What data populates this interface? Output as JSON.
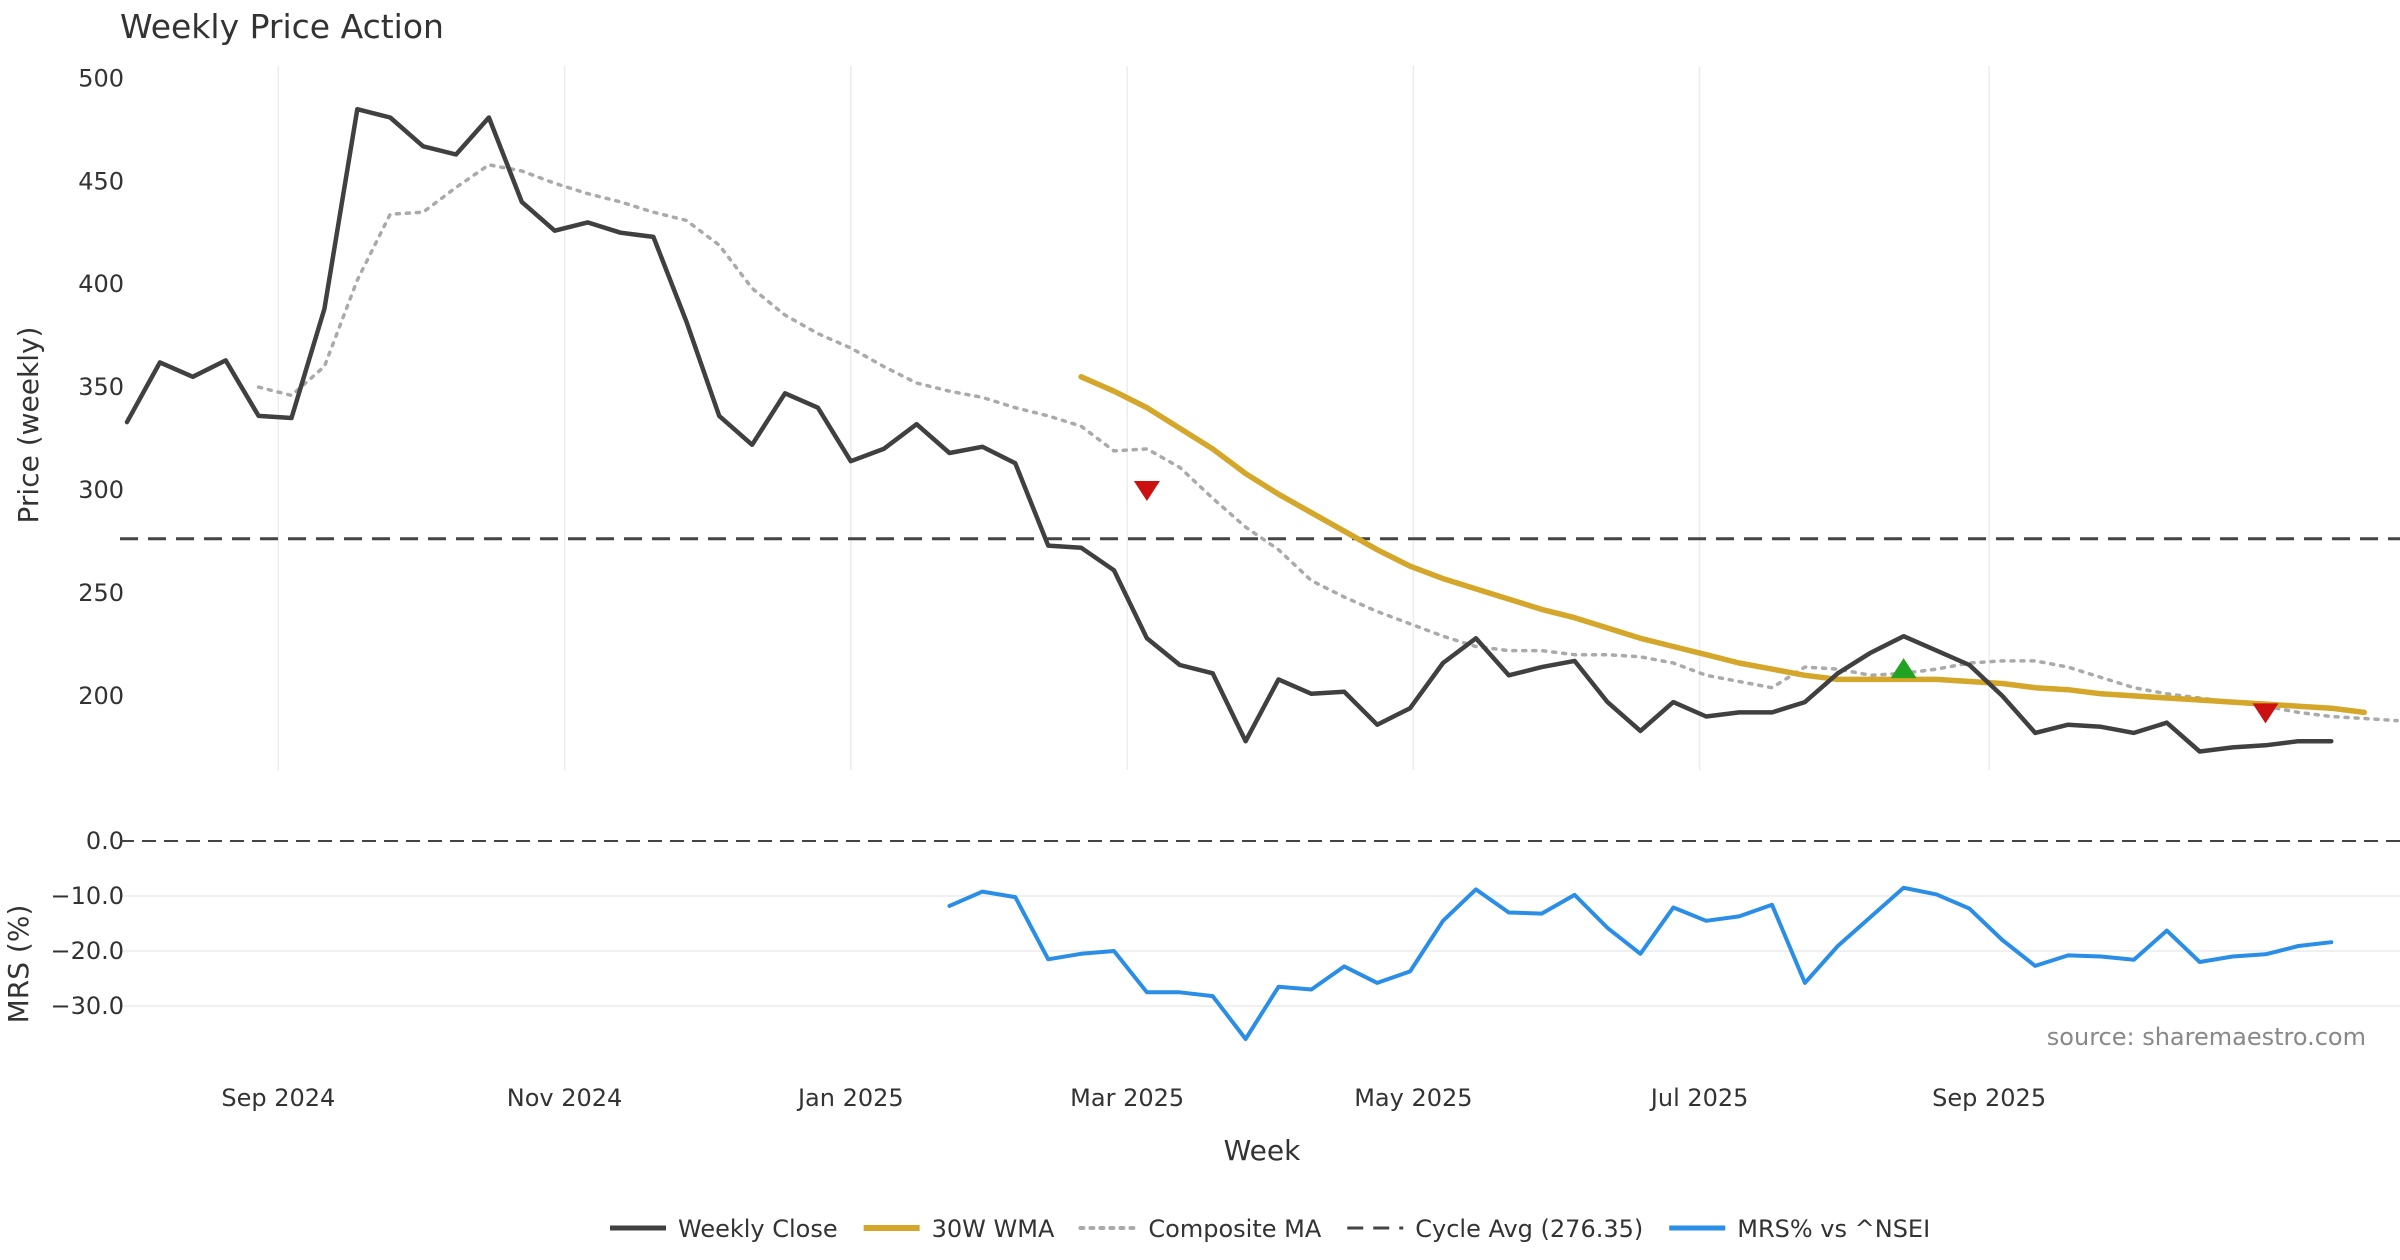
{
  "chart_data": {
    "type": "line",
    "title": "Weekly Price Action",
    "xlabel": "Week",
    "source": "source: sharemaestro.com",
    "x_ticks": [
      "Sep 2024",
      "Nov 2024",
      "Jan 2025",
      "Mar 2025",
      "May 2025",
      "Jul 2025",
      "Sep 2025"
    ],
    "panels": {
      "price": {
        "ylabel": "Price (weekly)",
        "ylim": [
          164,
          506
        ],
        "y_ticks": [
          200,
          250,
          300,
          350,
          400,
          450,
          500
        ],
        "series": [
          {
            "name": "Weekly Close",
            "color": "#404040",
            "start_index": 0,
            "values": [
              333,
              362,
              355,
              363,
              336,
              335,
              388,
              485,
              481,
              467,
              463,
              481,
              440,
              426,
              430,
              425,
              423,
              382,
              336,
              322,
              347,
              340,
              314,
              320,
              332,
              318,
              321,
              313,
              273,
              272,
              261,
              228,
              215,
              211,
              178,
              208,
              201,
              202,
              186,
              194,
              216,
              228,
              210,
              214,
              217,
              197,
              183,
              197,
              190,
              192,
              192,
              197,
              211,
              221,
              229,
              222,
              215,
              200,
              182,
              186,
              185,
              182,
              187,
              173,
              175,
              176,
              178,
              178
            ]
          },
          {
            "name": "30W WMA",
            "color": "#d4a62a",
            "start_index": 29,
            "values": [
              355,
              348,
              340,
              330,
              320,
              308,
              298,
              289,
              280,
              271,
              263,
              257,
              252,
              247,
              242,
              238,
              233,
              228,
              224,
              220,
              216,
              213,
              210,
              208,
              208,
              208,
              208,
              207,
              206,
              204,
              203,
              201,
              200,
              199,
              198,
              197,
              196,
              195,
              194,
              192
            ]
          },
          {
            "name": "Composite MA",
            "color": "#aaaaaa",
            "start_index": 4,
            "values": [
              350,
              346,
              360,
              402,
              434,
              435,
              447,
              458,
              455,
              449,
              444,
              440,
              435,
              431,
              419,
              398,
              385,
              376,
              369,
              360,
              352,
              348,
              345,
              340,
              336,
              331,
              319,
              320,
              311,
              296,
              282,
              271,
              256,
              248,
              241,
              235,
              229,
              224,
              222,
              222,
              220,
              220,
              219,
              216,
              210,
              207,
              204,
              214,
              213,
              210,
              211,
              213,
              216,
              217,
              217,
              214,
              209,
              204,
              201,
              199,
              197,
              195,
              192,
              190,
              189,
              188
            ]
          }
        ],
        "reference_line": {
          "name": "Cycle Avg (276.35)",
          "value": 276.35,
          "color": "#444444"
        },
        "markers": [
          {
            "type": "sell",
            "index": 31,
            "value": 300,
            "color": "#cc1111"
          },
          {
            "type": "buy",
            "index": 54,
            "value": 213,
            "color": "#22a322"
          },
          {
            "type": "sell",
            "index": 65,
            "value": 192,
            "color": "#cc1111"
          }
        ]
      },
      "mrs": {
        "ylabel": "MRS (%)",
        "ylim": [
          -38,
          2
        ],
        "y_ticks": [
          0.0,
          -10.0,
          -20.0,
          -30.0
        ],
        "y_tick_labels": [
          "0.0",
          "−10.0",
          "−20.0",
          "−30.0"
        ],
        "zero_line": 0,
        "series": [
          {
            "name": "MRS% vs ^NSEI",
            "color": "#2a8ee6",
            "start_index": 25,
            "values": [
              -11.8,
              -9.2,
              -10.2,
              -21.5,
              -20.5,
              -20.0,
              -27.5,
              -27.5,
              -28.2,
              -36.0,
              -26.5,
              -27.0,
              -22.8,
              -25.8,
              -23.7,
              -14.5,
              -8.8,
              -13.0,
              -13.2,
              -9.8,
              -15.8,
              -20.5,
              -12.1,
              -14.5,
              -13.7,
              -11.6,
              -25.8,
              -19.1,
              -13.8,
              -8.5,
              -9.7,
              -12.3,
              -18.0,
              -22.7,
              -20.8,
              -21.0,
              -21.6,
              -16.3,
              -22.0,
              -21.0,
              -20.6,
              -19.1,
              -18.4
            ]
          }
        ]
      }
    },
    "legend": [
      {
        "label": "Weekly Close",
        "style": "solid",
        "color": "#404040"
      },
      {
        "label": "30W WMA",
        "style": "solid-thick",
        "color": "#d4a62a"
      },
      {
        "label": "Composite MA",
        "style": "dotted",
        "color": "#aaaaaa"
      },
      {
        "label": "Cycle Avg (276.35)",
        "style": "dashed",
        "color": "#444444"
      },
      {
        "label": "MRS% vs ^NSEI",
        "style": "solid",
        "color": "#2a8ee6"
      }
    ]
  }
}
